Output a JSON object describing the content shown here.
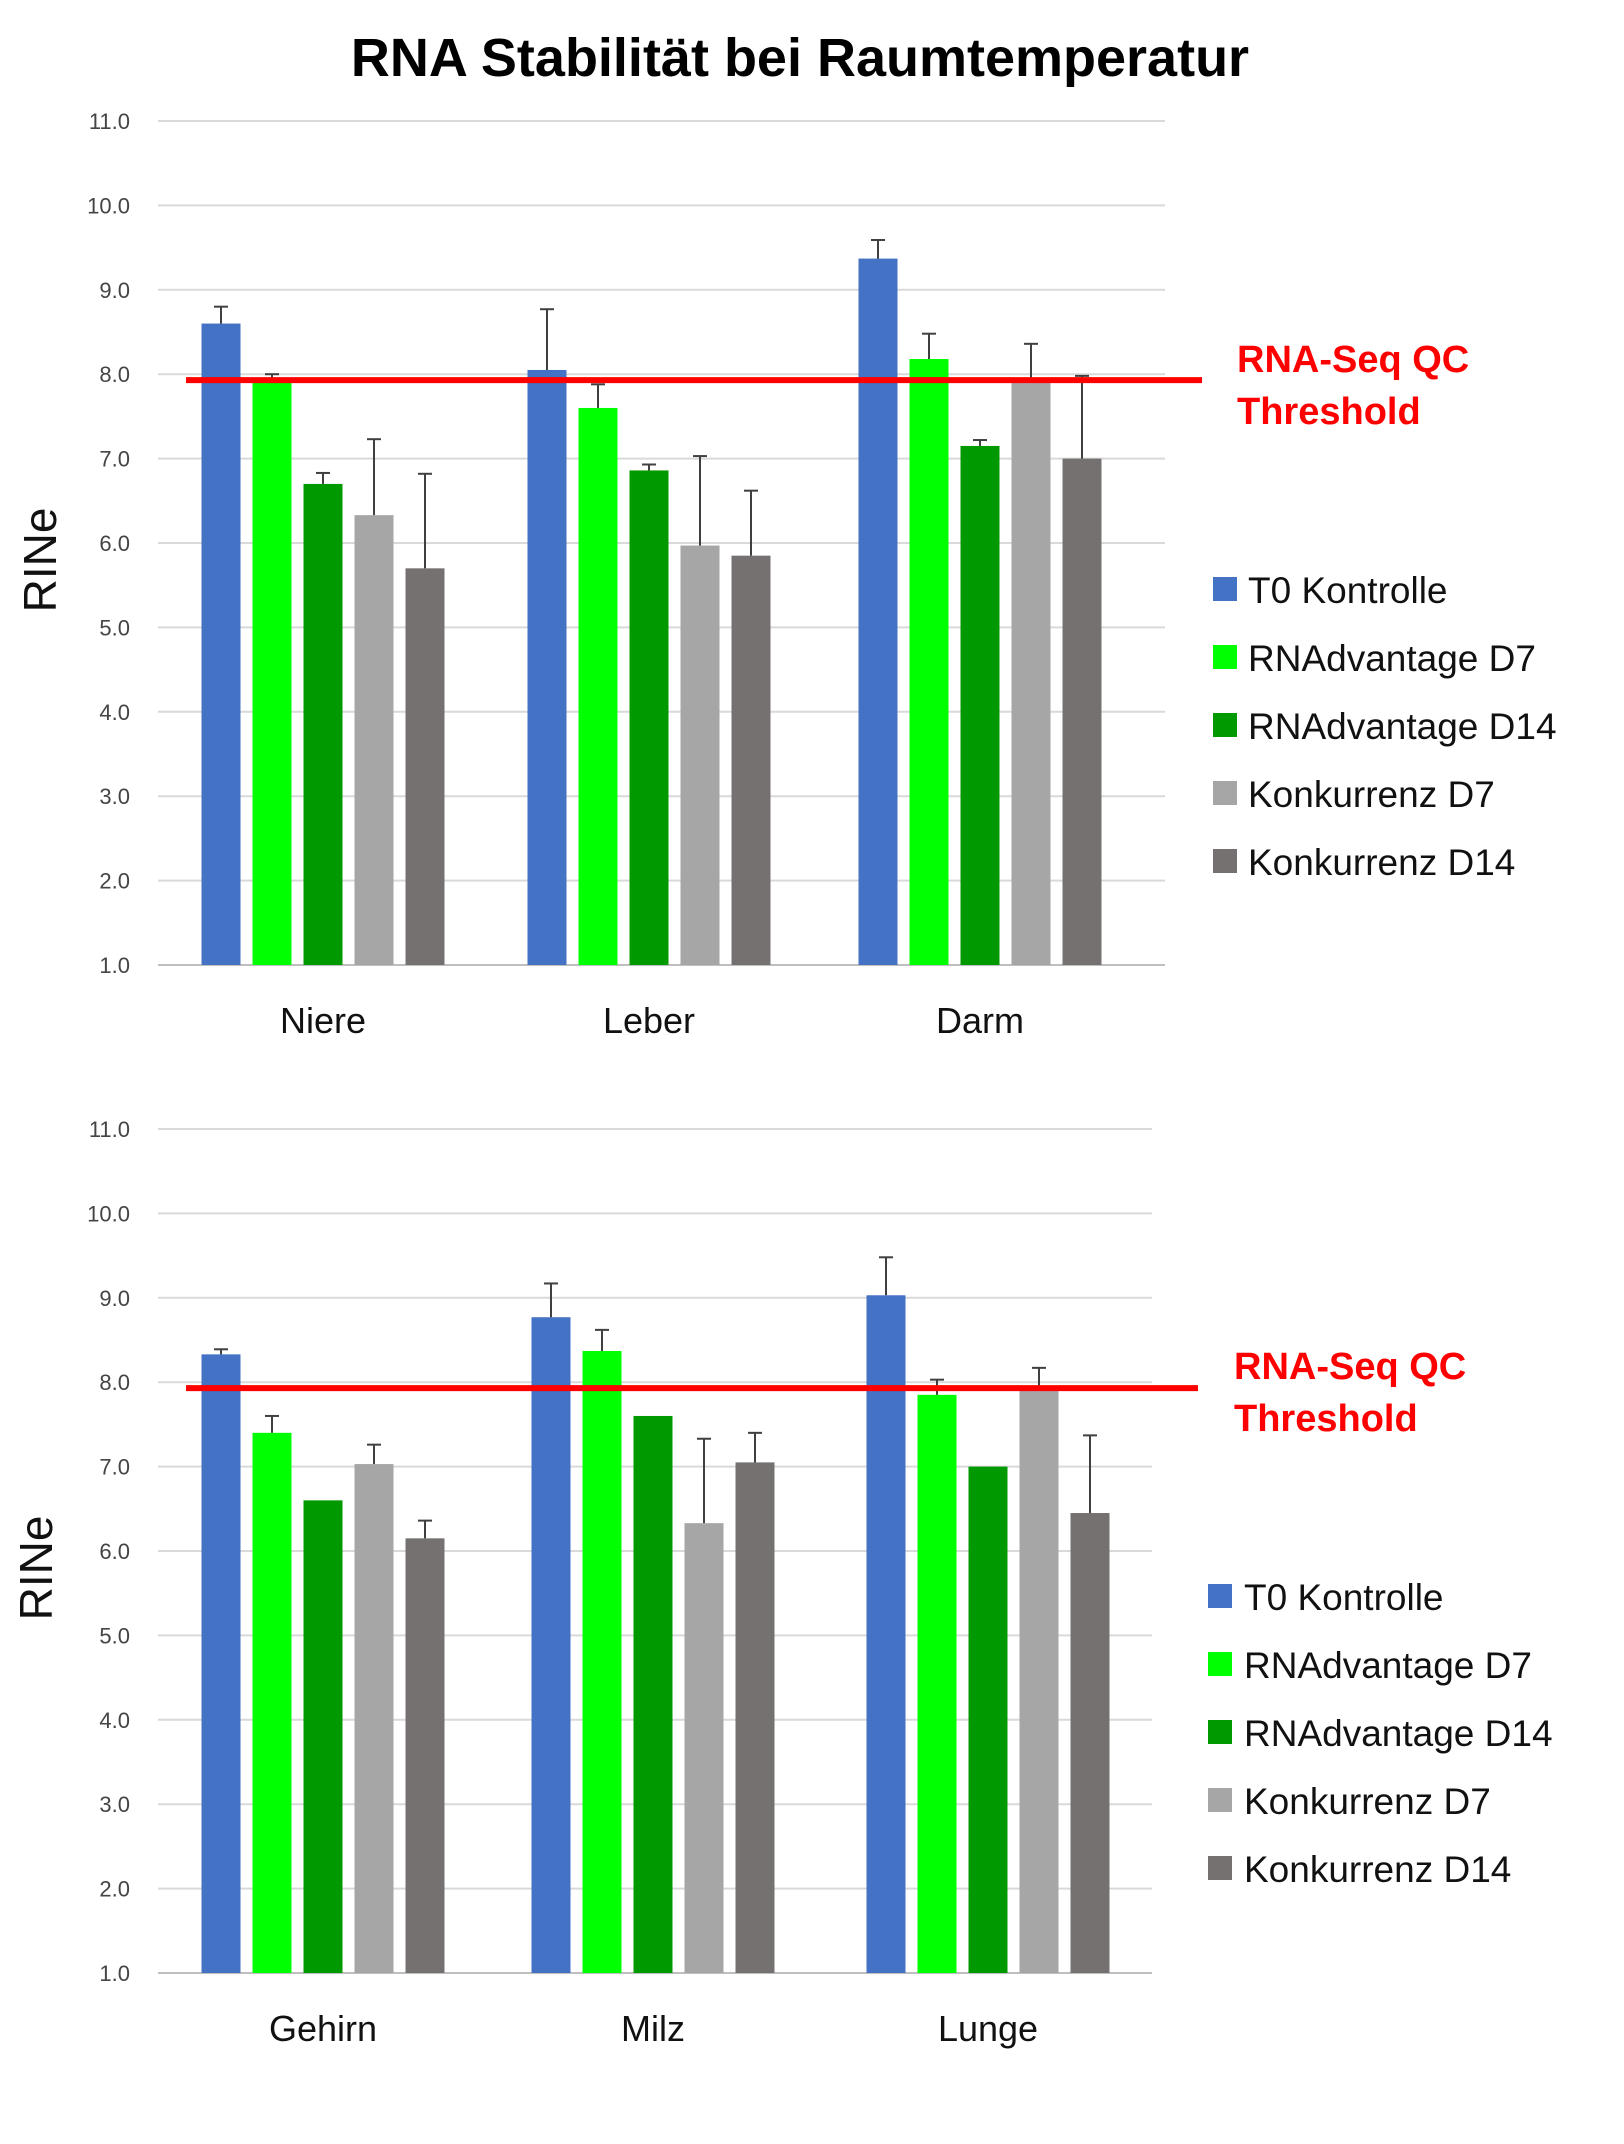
{
  "page_title": "RNA Stabilität bei Raumtemperatur",
  "colors": {
    "T0 Kontrolle": "#4472c4",
    "RNAdvantage D7": "#00ff00",
    "RNAdvantage D14": "#009900",
    "Konkurrenz D7": "#a6a6a6",
    "Konkurrenz D14": "#767171",
    "threshold": "#ff0000",
    "grid": "#d9d9d9",
    "error_bar": "#404040"
  },
  "chart_data": [
    {
      "type": "bar",
      "title": "RNA Stabilität bei Raumtemperatur",
      "xlabel": "",
      "ylabel": "RINe",
      "ylim": [
        1.0,
        11.0
      ],
      "yticks": [
        "1.0",
        "2.0",
        "3.0",
        "4.0",
        "5.0",
        "6.0",
        "7.0",
        "8.0",
        "9.0",
        "10.0",
        "11.0"
      ],
      "grid": true,
      "legend_position": "right",
      "categories": [
        "Niere",
        "Leber",
        "Darm"
      ],
      "series": [
        {
          "name": "T0 Kontrolle",
          "values": [
            8.6,
            8.05,
            9.37
          ],
          "errors": [
            0.2,
            0.72,
            0.22
          ]
        },
        {
          "name": "RNAdvantage D7",
          "values": [
            7.92,
            7.6,
            8.18
          ],
          "errors": [
            0.08,
            0.28,
            0.3
          ]
        },
        {
          "name": "RNAdvantage D14",
          "values": [
            6.7,
            6.86,
            7.15
          ],
          "errors": [
            0.13,
            0.07,
            0.07
          ]
        },
        {
          "name": "Konkurrenz D7",
          "values": [
            6.33,
            5.97,
            7.9
          ],
          "errors": [
            0.9,
            1.06,
            0.46
          ]
        },
        {
          "name": "Konkurrenz D14",
          "values": [
            5.7,
            5.85,
            7.0
          ],
          "errors": [
            1.12,
            0.77,
            0.98
          ]
        }
      ],
      "threshold": {
        "value": 7.93,
        "label_line1": "RNA-Seq QC",
        "label_line2": "Threshold"
      }
    },
    {
      "type": "bar",
      "title": "",
      "xlabel": "",
      "ylabel": "RINe",
      "ylim": [
        1.0,
        11.0
      ],
      "yticks": [
        "1.0",
        "2.0",
        "3.0",
        "4.0",
        "5.0",
        "6.0",
        "7.0",
        "8.0",
        "9.0",
        "10.0",
        "11.0"
      ],
      "grid": true,
      "legend_position": "right",
      "categories": [
        "Gehirn",
        "Milz",
        "Lunge"
      ],
      "series": [
        {
          "name": "T0 Kontrolle",
          "values": [
            8.33,
            8.77,
            9.03
          ],
          "errors": [
            0.06,
            0.4,
            0.45
          ]
        },
        {
          "name": "RNAdvantage D7",
          "values": [
            7.4,
            8.37,
            7.85
          ],
          "errors": [
            0.2,
            0.25,
            0.18
          ]
        },
        {
          "name": "RNAdvantage D14",
          "values": [
            6.6,
            7.6,
            7.0
          ],
          "errors": [
            0.0,
            0.0,
            0.0
          ]
        },
        {
          "name": "Konkurrenz D7",
          "values": [
            7.03,
            6.33,
            7.9
          ],
          "errors": [
            0.23,
            1.0,
            0.27
          ]
        },
        {
          "name": "Konkurrenz D14",
          "values": [
            6.15,
            7.05,
            6.45
          ],
          "errors": [
            0.21,
            0.35,
            0.92
          ]
        }
      ],
      "threshold": {
        "value": 7.93,
        "label_line1": "RNA-Seq QC",
        "label_line2": "Threshold"
      }
    }
  ]
}
